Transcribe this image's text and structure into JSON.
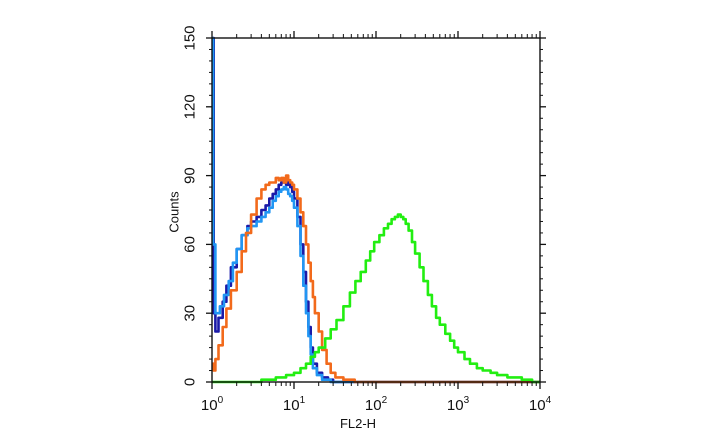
{
  "chart_data": {
    "type": "line",
    "xlabel": "FL2-H",
    "ylabel": "Counts",
    "x_scale": "log",
    "xlim": [
      1,
      10000
    ],
    "ylim": [
      0,
      150
    ],
    "x_ticks": [
      {
        "value": 1,
        "base": "10",
        "exp": "0"
      },
      {
        "value": 10,
        "base": "10",
        "exp": "1"
      },
      {
        "value": 100,
        "base": "10",
        "exp": "2"
      },
      {
        "value": 1000,
        "base": "10",
        "exp": "3"
      },
      {
        "value": 10000,
        "base": "10",
        "exp": "4"
      }
    ],
    "y_ticks": [
      "0",
      "30",
      "60",
      "90",
      "120",
      "150"
    ],
    "grid": false,
    "series": [
      {
        "color": "#1a1aa8",
        "points": [
          [
            1.02,
            150
          ],
          [
            1.05,
            30
          ],
          [
            1.1,
            22
          ],
          [
            1.2,
            28
          ],
          [
            1.35,
            35
          ],
          [
            1.5,
            42
          ],
          [
            1.7,
            50
          ],
          [
            2,
            58
          ],
          [
            2.3,
            64
          ],
          [
            2.7,
            68
          ],
          [
            3,
            70
          ],
          [
            3.5,
            72
          ],
          [
            4,
            75
          ],
          [
            4.5,
            77
          ],
          [
            5,
            80
          ],
          [
            5.5,
            82
          ],
          [
            6,
            84
          ],
          [
            6.5,
            86
          ],
          [
            7,
            87
          ],
          [
            7.5,
            87
          ],
          [
            8,
            86
          ],
          [
            8.5,
            87
          ],
          [
            9,
            85
          ],
          [
            9.5,
            83
          ],
          [
            10,
            80
          ],
          [
            11,
            72
          ],
          [
            12,
            60
          ],
          [
            13,
            48
          ],
          [
            14,
            35
          ],
          [
            15,
            24
          ],
          [
            16,
            15
          ],
          [
            17,
            8
          ],
          [
            19,
            4
          ],
          [
            22,
            2
          ],
          [
            26,
            1
          ],
          [
            30,
            0
          ],
          [
            60,
            0
          ],
          [
            10000,
            0
          ]
        ]
      },
      {
        "color": "#2196f3",
        "points": [
          [
            1.01,
            150
          ],
          [
            1.03,
            60
          ],
          [
            1.1,
            30
          ],
          [
            1.25,
            33
          ],
          [
            1.4,
            38
          ],
          [
            1.6,
            44
          ],
          [
            1.8,
            52
          ],
          [
            2,
            58
          ],
          [
            2.3,
            64
          ],
          [
            2.7,
            67
          ],
          [
            3,
            68
          ],
          [
            3.5,
            70
          ],
          [
            4,
            72
          ],
          [
            4.5,
            74
          ],
          [
            5,
            76
          ],
          [
            5.5,
            79
          ],
          [
            6,
            81
          ],
          [
            6.5,
            83
          ],
          [
            7,
            84
          ],
          [
            7.5,
            85
          ],
          [
            8,
            84
          ],
          [
            8.5,
            82
          ],
          [
            9,
            81
          ],
          [
            9.5,
            79
          ],
          [
            10,
            76
          ],
          [
            11,
            68
          ],
          [
            12,
            55
          ],
          [
            13,
            42
          ],
          [
            14,
            30
          ],
          [
            15,
            20
          ],
          [
            16,
            12
          ],
          [
            17,
            6
          ],
          [
            19,
            3
          ],
          [
            22,
            1
          ],
          [
            28,
            0
          ],
          [
            10000,
            0
          ]
        ]
      },
      {
        "color": "#f26a1b",
        "points": [
          [
            1.01,
            8
          ],
          [
            1.05,
            5
          ],
          [
            1.1,
            10
          ],
          [
            1.2,
            16
          ],
          [
            1.35,
            24
          ],
          [
            1.5,
            32
          ],
          [
            1.7,
            40
          ],
          [
            2,
            48
          ],
          [
            2.3,
            57
          ],
          [
            2.6,
            65
          ],
          [
            3,
            73
          ],
          [
            3.5,
            80
          ],
          [
            4,
            84
          ],
          [
            4.5,
            86
          ],
          [
            5,
            87
          ],
          [
            5.5,
            87
          ],
          [
            6,
            89
          ],
          [
            6.5,
            88
          ],
          [
            7,
            89
          ],
          [
            7.5,
            87
          ],
          [
            8,
            90
          ],
          [
            8.5,
            88
          ],
          [
            9,
            87
          ],
          [
            9.5,
            86
          ],
          [
            10,
            84
          ],
          [
            11,
            80
          ],
          [
            12,
            74
          ],
          [
            13,
            68
          ],
          [
            14,
            60
          ],
          [
            15,
            52
          ],
          [
            16,
            44
          ],
          [
            17,
            37
          ],
          [
            18,
            30
          ],
          [
            20,
            22
          ],
          [
            22,
            14
          ],
          [
            25,
            8
          ],
          [
            28,
            4
          ],
          [
            32,
            2
          ],
          [
            40,
            1
          ],
          [
            55,
            0
          ],
          [
            10000,
            0
          ]
        ]
      },
      {
        "color": "#22ee11",
        "points": [
          [
            1,
            0
          ],
          [
            2,
            0
          ],
          [
            4,
            1
          ],
          [
            6,
            2
          ],
          [
            8,
            3
          ],
          [
            10,
            4
          ],
          [
            12,
            6
          ],
          [
            14,
            8
          ],
          [
            16,
            11
          ],
          [
            18,
            13
          ],
          [
            20,
            15
          ],
          [
            24,
            19
          ],
          [
            28,
            23
          ],
          [
            33,
            27
          ],
          [
            40,
            33
          ],
          [
            48,
            39
          ],
          [
            56,
            44
          ],
          [
            65,
            48
          ],
          [
            75,
            53
          ],
          [
            85,
            57
          ],
          [
            95,
            61
          ],
          [
            110,
            64
          ],
          [
            125,
            67
          ],
          [
            140,
            69
          ],
          [
            155,
            71
          ],
          [
            170,
            72
          ],
          [
            185,
            73
          ],
          [
            200,
            72
          ],
          [
            215,
            71
          ],
          [
            230,
            69
          ],
          [
            250,
            66
          ],
          [
            275,
            61
          ],
          [
            300,
            56
          ],
          [
            340,
            50
          ],
          [
            380,
            44
          ],
          [
            430,
            38
          ],
          [
            480,
            33
          ],
          [
            540,
            28
          ],
          [
            600,
            25
          ],
          [
            700,
            21
          ],
          [
            800,
            18
          ],
          [
            900,
            15
          ],
          [
            1000,
            13
          ],
          [
            1200,
            10
          ],
          [
            1400,
            8
          ],
          [
            1700,
            6
          ],
          [
            2000,
            5
          ],
          [
            2500,
            4
          ],
          [
            3000,
            3
          ],
          [
            4000,
            2
          ],
          [
            5000,
            2
          ],
          [
            6000,
            1
          ],
          [
            7000,
            1
          ],
          [
            8000,
            0
          ],
          [
            10000,
            0
          ]
        ]
      }
    ]
  }
}
